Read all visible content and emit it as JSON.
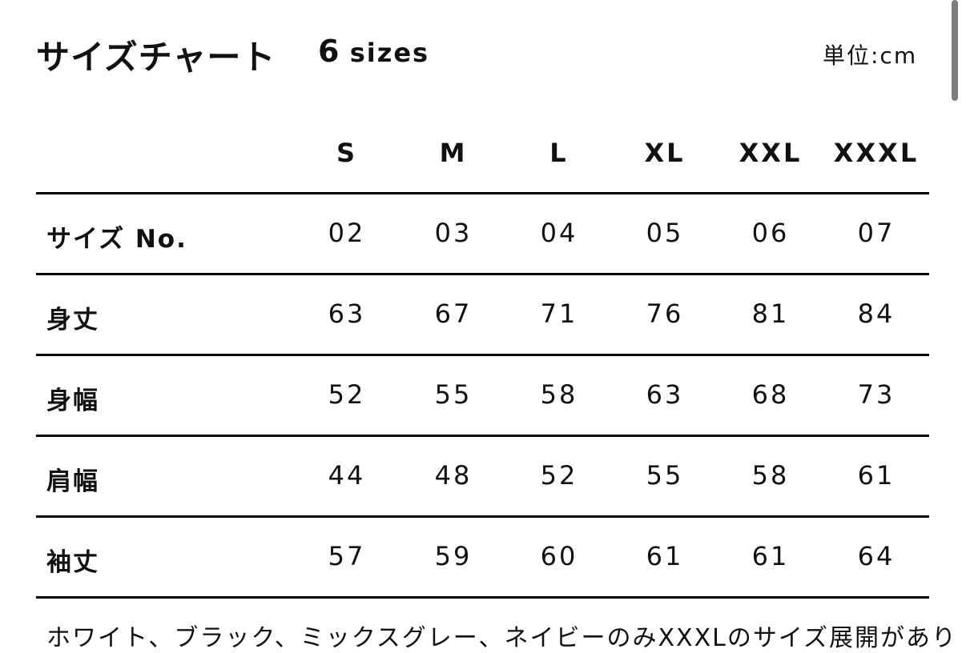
{
  "header": {
    "title": "サイズチャート",
    "count": "6",
    "count_unit": "sizes",
    "unit_label": "単位:cm"
  },
  "table": {
    "columns": [
      "S",
      "M",
      "L",
      "XL",
      "XXL",
      "XXXL"
    ],
    "rows": [
      {
        "label": "サイズ No.",
        "values": [
          "02",
          "03",
          "04",
          "05",
          "06",
          "07"
        ]
      },
      {
        "label": "身丈",
        "values": [
          "63",
          "67",
          "71",
          "76",
          "81",
          "84"
        ]
      },
      {
        "label": "身幅",
        "values": [
          "52",
          "55",
          "58",
          "63",
          "68",
          "73"
        ]
      },
      {
        "label": "肩幅",
        "values": [
          "44",
          "48",
          "52",
          "55",
          "58",
          "61"
        ]
      },
      {
        "label": "袖丈",
        "values": [
          "57",
          "59",
          "60",
          "61",
          "61",
          "64"
        ]
      }
    ]
  },
  "note": "ホワイト、ブラック、ミックスグレー、ネイビーのみXXXLのサイズ展開があり"
}
